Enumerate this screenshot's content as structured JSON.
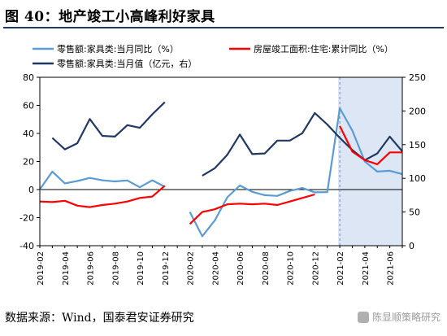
{
  "figure": {
    "title": "图 40：地产竣工小高峰利好家具",
    "source": "数据来源：Wind，国泰君安证券研究",
    "watermark": "陈显顺策略研究"
  },
  "chart_data": {
    "type": "line",
    "x": [
      "2019-02",
      "2019-03",
      "2019-04",
      "2019-05",
      "2019-06",
      "2019-07",
      "2019-08",
      "2019-09",
      "2019-10",
      "2019-11",
      "2019-12",
      "2020-01",
      "2020-02",
      "2020-03",
      "2020-04",
      "2020-05",
      "2020-06",
      "2020-07",
      "2020-08",
      "2020-09",
      "2020-10",
      "2020-11",
      "2020-12",
      "2021-01",
      "2021-02",
      "2021-03",
      "2021-04",
      "2021-05",
      "2021-06",
      "2021-07"
    ],
    "x_tick_labels": [
      "2019-02",
      "2019-04",
      "2019-06",
      "2019-08",
      "2019-10",
      "2019-12",
      "2020-02",
      "2020-04",
      "2020-06",
      "2020-08",
      "2020-10",
      "2020-12",
      "2021-02",
      "2021-04",
      "2021-06"
    ],
    "y_left": {
      "ylim": [
        -40,
        80
      ],
      "ticks": [
        -40,
        -20,
        0,
        20,
        40,
        60,
        80
      ]
    },
    "y_right": {
      "ylim": [
        0,
        250
      ],
      "ticks": [
        0,
        50,
        100,
        150,
        200,
        250
      ]
    },
    "shaded_region": [
      "2021-02",
      "2021-07"
    ],
    "shade_color": "#dce6f4",
    "series": [
      {
        "name": "零售额:家具类:当月同比（%）",
        "axis": "left",
        "color": "#5b9bd5",
        "values": [
          0.1,
          12.8,
          4.4,
          6.1,
          8.3,
          6.6,
          5.8,
          6.5,
          1.6,
          6.6,
          2.0,
          null,
          -16.0,
          -33.3,
          -22.0,
          -5.5,
          2.9,
          -1.6,
          -4.0,
          -4.5,
          -1.0,
          1.1,
          -2.0,
          -1.8,
          58.0,
          42.0,
          20.0,
          12.8,
          13.4,
          11.0
        ]
      },
      {
        "name": "零售额:家具类:当月值（亿元，右）",
        "axis": "right",
        "color": "#1f3864",
        "values": [
          null,
          160,
          143,
          152,
          188,
          163,
          162,
          179,
          175,
          195,
          213,
          null,
          null,
          104,
          115,
          135,
          165,
          136,
          137,
          156,
          156,
          167,
          197,
          180,
          160,
          142,
          127,
          137,
          162,
          140
        ]
      },
      {
        "name": "房屋竣工面积:住宅:累计同比（%）",
        "axis": "left",
        "color": "#ff0000",
        "values": [
          -8.5,
          -8.9,
          -8.0,
          -11.5,
          -12.5,
          -11.0,
          -10.0,
          -8.5,
          -6.0,
          -5.0,
          2.7,
          null,
          -24.5,
          -16.0,
          -14.0,
          -10.5,
          -10.0,
          -10.5,
          -10.0,
          -11.0,
          -8.5,
          -6.0,
          -3.5,
          null,
          45.3,
          27.0,
          21.0,
          18.0,
          26.5,
          26.5
        ]
      }
    ]
  }
}
